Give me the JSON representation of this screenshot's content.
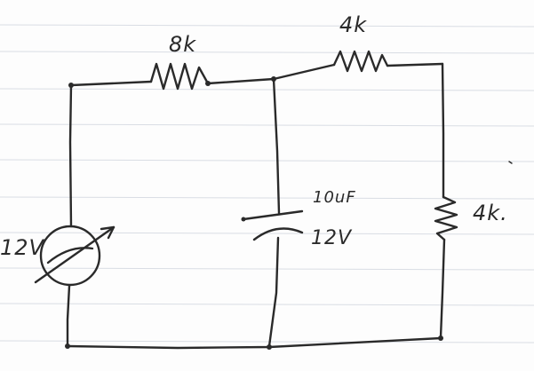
{
  "labels": {
    "r_top_left": "8k",
    "r_top_right": "4k",
    "r_right": "4k.",
    "cap_value": "10uF",
    "cap_voltage": "12V",
    "source_voltage": "12V"
  },
  "colors": {
    "ink": "#2a2a2a",
    "paper_rule": "#d9dde4",
    "paper": "#fdfdfd"
  }
}
